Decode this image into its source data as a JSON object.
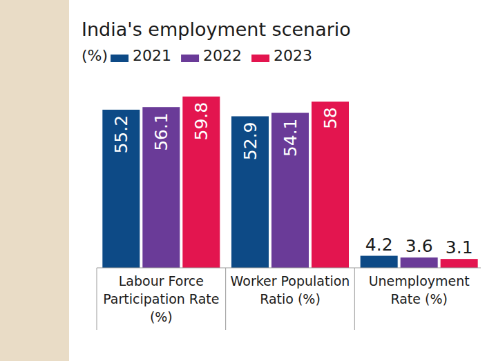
{
  "chart_data": {
    "type": "bar",
    "title": "India's employment scenario",
    "subtitle": "(%)",
    "categories": [
      "Labour Force Participation Rate (%)",
      "Worker Population Ratio (%)",
      "Unemployment Rate (%)"
    ],
    "series": [
      {
        "name": "2021",
        "color": "#0d4a86",
        "values": [
          55.2,
          52.9,
          4.2
        ]
      },
      {
        "name": "2022",
        "color": "#6a3b98",
        "values": [
          56.1,
          54.1,
          3.6
        ]
      },
      {
        "name": "2023",
        "color": "#e3154f",
        "values": [
          59.8,
          58,
          3.1
        ]
      }
    ],
    "ylim": [
      0,
      60
    ],
    "grid": false,
    "legend": "top",
    "data_labels": true,
    "tick_labels": false
  }
}
